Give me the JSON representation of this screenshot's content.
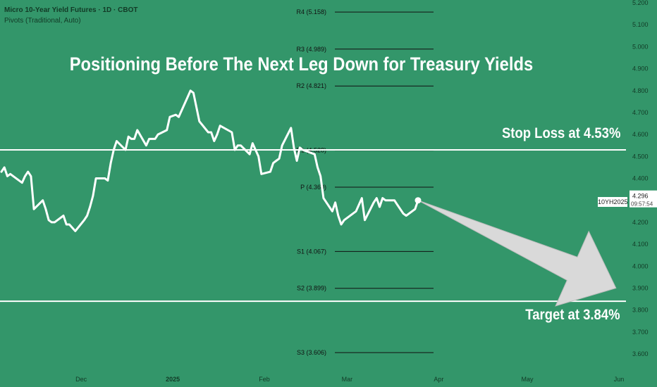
{
  "header": {
    "instrument": "Micro 10-Year Yield Futures · 1D · CBOT",
    "indicator": "Pivots (Traditional, Auto)"
  },
  "title": "Positioning Before The Next Leg Down for Treasury Yields",
  "annotations": {
    "stop_loss": "Stop Loss at 4.53%",
    "target": "Target at 3.84%"
  },
  "price_scale": {
    "symbol": "10YH2025",
    "last_price": "4.296",
    "countdown": "09:57:54"
  },
  "colors": {
    "background": "#33966a",
    "line": "#ffffff",
    "arrow": "#d9d9d9",
    "pivot_line": "#111111",
    "axis_text": "#123a26"
  },
  "chart_data": {
    "type": "line",
    "title": "Positioning Before The Next Leg Down for Treasury Yields",
    "xlabel": "",
    "ylabel": "",
    "ylim": [
      3.58,
      5.22
    ],
    "grid": false,
    "y_ticks": [
      "5.200",
      "5.100",
      "5.000",
      "4.900",
      "4.800",
      "4.700",
      "4.600",
      "4.500",
      "4.400",
      "4.300",
      "4.200",
      "4.100",
      "4.000",
      "3.900",
      "3.800",
      "3.700",
      "3.600"
    ],
    "x_ticks": [
      {
        "label": "Dec",
        "date": "2024-12-01"
      },
      {
        "label": "2025",
        "date": "2025-01-01"
      },
      {
        "label": "Feb",
        "date": "2025-02-01"
      },
      {
        "label": "Mar",
        "date": "2025-03-01"
      },
      {
        "label": "Apr",
        "date": "2025-04-01"
      },
      {
        "label": "May",
        "date": "2025-05-01"
      },
      {
        "label": "Jun",
        "date": "2025-06-01"
      }
    ],
    "x_range": [
      "2024-11-04",
      "2025-06-01"
    ],
    "series": [
      {
        "points": [
          [
            "2024-11-04",
            4.43
          ],
          [
            "2024-11-05",
            4.45
          ],
          [
            "2024-11-06",
            4.41
          ],
          [
            "2024-11-07",
            4.42
          ],
          [
            "2024-11-08",
            4.41
          ],
          [
            "2024-11-11",
            4.38
          ],
          [
            "2024-11-12",
            4.41
          ],
          [
            "2024-11-13",
            4.43
          ],
          [
            "2024-11-14",
            4.41
          ],
          [
            "2024-11-15",
            4.26
          ],
          [
            "2024-11-18",
            4.3
          ],
          [
            "2024-11-19",
            4.26
          ],
          [
            "2024-11-20",
            4.21
          ],
          [
            "2024-11-21",
            4.2
          ],
          [
            "2024-11-22",
            4.2
          ],
          [
            "2024-11-25",
            4.23
          ],
          [
            "2024-11-26",
            4.19
          ],
          [
            "2024-11-27",
            4.19
          ],
          [
            "2024-11-29",
            4.16
          ],
          [
            "2024-12-02",
            4.21
          ],
          [
            "2024-12-03",
            4.23
          ],
          [
            "2024-12-04",
            4.27
          ],
          [
            "2024-12-05",
            4.32
          ],
          [
            "2024-12-06",
            4.4
          ],
          [
            "2024-12-09",
            4.4
          ],
          [
            "2024-12-10",
            4.39
          ],
          [
            "2024-12-11",
            4.47
          ],
          [
            "2024-12-12",
            4.53
          ],
          [
            "2024-12-13",
            4.57
          ],
          [
            "2024-12-16",
            4.53
          ],
          [
            "2024-12-17",
            4.59
          ],
          [
            "2024-12-18",
            4.58
          ],
          [
            "2024-12-19",
            4.58
          ],
          [
            "2024-12-20",
            4.62
          ],
          [
            "2024-12-23",
            4.55
          ],
          [
            "2024-12-24",
            4.58
          ],
          [
            "2024-12-26",
            4.58
          ],
          [
            "2024-12-27",
            4.6
          ],
          [
            "2024-12-30",
            4.62
          ],
          [
            "2024-12-31",
            4.68
          ],
          [
            "2025-01-02",
            4.69
          ],
          [
            "2025-01-03",
            4.68
          ],
          [
            "2025-01-06",
            4.77
          ],
          [
            "2025-01-07",
            4.8
          ],
          [
            "2025-01-08",
            4.79
          ],
          [
            "2025-01-10",
            4.66
          ],
          [
            "2025-01-13",
            4.61
          ],
          [
            "2025-01-14",
            4.61
          ],
          [
            "2025-01-15",
            4.57
          ],
          [
            "2025-01-16",
            4.6
          ],
          [
            "2025-01-17",
            4.64
          ],
          [
            "2025-01-21",
            4.61
          ],
          [
            "2025-01-22",
            4.53
          ],
          [
            "2025-01-23",
            4.55
          ],
          [
            "2025-01-24",
            4.55
          ],
          [
            "2025-01-27",
            4.51
          ],
          [
            "2025-01-28",
            4.56
          ],
          [
            "2025-01-29",
            4.53
          ],
          [
            "2025-01-30",
            4.5
          ],
          [
            "2025-01-31",
            4.42
          ],
          [
            "2025-02-03",
            4.43
          ],
          [
            "2025-02-04",
            4.47
          ],
          [
            "2025-02-05",
            4.48
          ],
          [
            "2025-02-06",
            4.49
          ],
          [
            "2025-02-07",
            4.55
          ],
          [
            "2025-02-10",
            4.63
          ],
          [
            "2025-02-11",
            4.54
          ],
          [
            "2025-02-12",
            4.48
          ],
          [
            "2025-02-13",
            4.54
          ],
          [
            "2025-02-14",
            4.53
          ],
          [
            "2025-02-18",
            4.51
          ],
          [
            "2025-02-19",
            4.45
          ],
          [
            "2025-02-20",
            4.41
          ],
          [
            "2025-02-21",
            4.31
          ],
          [
            "2025-02-24",
            4.25
          ],
          [
            "2025-02-25",
            4.29
          ],
          [
            "2025-02-26",
            4.23
          ],
          [
            "2025-02-27",
            4.19
          ],
          [
            "2025-02-28",
            4.21
          ],
          [
            "2025-03-03",
            4.24
          ],
          [
            "2025-03-04",
            4.25
          ],
          [
            "2025-03-05",
            4.28
          ],
          [
            "2025-03-06",
            4.31
          ],
          [
            "2025-03-07",
            4.21
          ],
          [
            "2025-03-10",
            4.29
          ],
          [
            "2025-03-11",
            4.31
          ],
          [
            "2025-03-12",
            4.27
          ],
          [
            "2025-03-13",
            4.31
          ],
          [
            "2025-03-14",
            4.3
          ],
          [
            "2025-03-17",
            4.3
          ],
          [
            "2025-03-18",
            4.28
          ],
          [
            "2025-03-19",
            4.26
          ],
          [
            "2025-03-20",
            4.24
          ],
          [
            "2025-03-21",
            4.23
          ],
          [
            "2025-03-24",
            4.26
          ],
          [
            "2025-03-25",
            4.3
          ]
        ]
      }
    ],
    "pivots": [
      {
        "label": "R4 (5.158)",
        "value": 5.158
      },
      {
        "label": "R3 (4.989)",
        "value": 4.989
      },
      {
        "label": "R2 (4.821)",
        "value": 4.821
      },
      {
        "label": "R1 (4.528)",
        "value": 4.528
      },
      {
        "label": "P (4.360)",
        "value": 4.36
      },
      {
        "label": "S1 (4.067)",
        "value": 4.067
      },
      {
        "label": "S2 (3.899)",
        "value": 3.899
      },
      {
        "label": "S3 (3.606)",
        "value": 3.606
      }
    ],
    "pivot_range": [
      "2025-02-17",
      "2025-03-31"
    ],
    "stop_loss": 4.53,
    "target": 3.84,
    "projection_arrow": {
      "from": [
        "2025-03-25",
        4.3
      ],
      "to": [
        "2025-05-31",
        3.9
      ]
    }
  }
}
